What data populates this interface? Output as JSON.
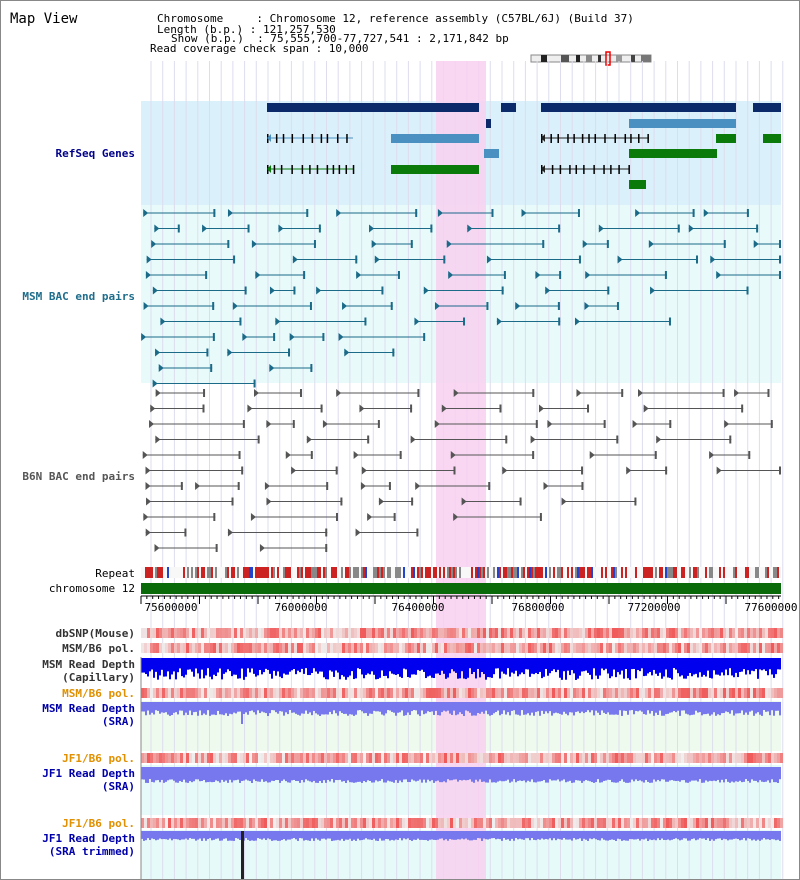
{
  "view_title": "Map View",
  "header": {
    "line1": "Chromosome     : Chromosome 12, reference assembly (C57BL/6J) (Build 37)",
    "line2": "Length (b.p.) : 121,257,530",
    "line3": "Show (b.p.)  : 75,555,700-77,727,541 : 2,171,842 bp",
    "line4": "Read coverage check span : 10,000"
  },
  "tracks": {
    "refseq": "RefSeq Genes",
    "msm_bac": "MSM BAC end pairs",
    "b6n_bac": "B6N BAC end pairs",
    "repeat": "Repeat",
    "chromosome": "chromosome 12",
    "dbsnp": "dbSNP(Mouse)",
    "msm_b6_pol_1": "MSM/B6 pol.",
    "msm_read_depth_cap_1": "MSM Read Depth",
    "msm_read_depth_cap_2": "(Capillary)",
    "msm_b6_pol_2": "MSM/B6 pol.",
    "msm_read_depth_sra_1": "MSM Read Depth",
    "msm_read_depth_sra_2": "(SRA)",
    "jf1_b6_pol_1": "JF1/B6 pol.",
    "jf1_read_depth_sra_1": "JF1 Read Depth",
    "jf1_read_depth_sra_2": "(SRA)",
    "jf1_b6_pol_2": "JF1/B6 pol.",
    "jf1_read_depth_trim_1": "JF1 Read Depth",
    "jf1_read_depth_trim_2": "(SRA trimmed)"
  },
  "axis": {
    "ticks": [
      "75600000",
      "76000000",
      "76400000",
      "76800000",
      "77200000",
      "77600000"
    ]
  },
  "colors": {
    "refseq_bg": "#daf0fa",
    "bac_bg": "#e8fafa",
    "highlight": "#f8d0f0",
    "gene_navy": "#0a2a6a",
    "gene_steel": "#4a90c0",
    "gene_green": "#0a7a0a",
    "msm_bac": "#1a6a88",
    "b6n_bac": "#555555",
    "chromosome": "#0a6a0a",
    "depth_blue": "#0000ee",
    "depth_light": "#7777ee"
  }
}
